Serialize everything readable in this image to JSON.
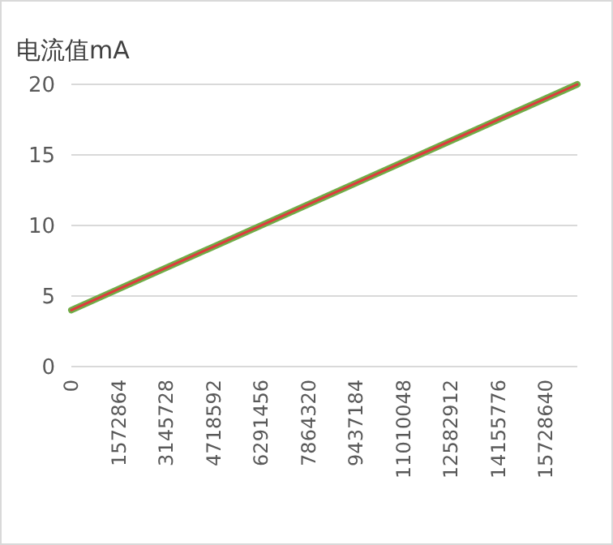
{
  "chart_data": {
    "type": "line",
    "title": "电流值mA",
    "x": [
      0,
      16777215
    ],
    "series": [
      {
        "color": "#70ad47",
        "values": [
          4,
          20
        ]
      },
      {
        "color": "#e0393e",
        "values": [
          4,
          20
        ]
      }
    ],
    "xlim": [
      0,
      16777215
    ],
    "xticks": [
      0,
      1572864,
      3145728,
      4718592,
      6291456,
      7864320,
      9437184,
      11010048,
      12582912,
      14155776,
      15728640
    ],
    "ylim": [
      0,
      20
    ],
    "yticks": [
      0,
      5,
      10,
      15,
      20
    ],
    "grid": "y",
    "marker": "none",
    "line_style": "solid"
  }
}
